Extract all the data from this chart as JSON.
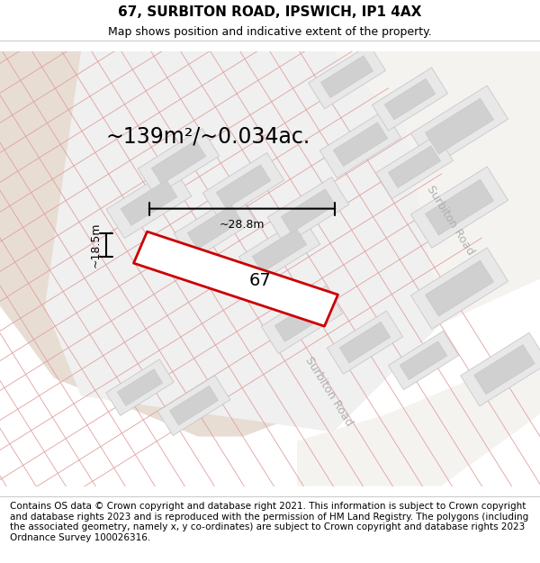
{
  "title_line1": "67, SURBITON ROAD, IPSWICH, IP1 4AX",
  "title_line2": "Map shows position and indicative extent of the property.",
  "footer_text": "Contains OS data © Crown copyright and database right 2021. This information is subject to Crown copyright and database rights 2023 and is reproduced with the permission of HM Land Registry. The polygons (including the associated geometry, namely x, y co-ordinates) are subject to Crown copyright and database rights 2023 Ordnance Survey 100026316.",
  "area_text": "~139m²/~0.034ac.",
  "width_label": "~28.8m",
  "height_label": "~18.5m",
  "number_label": "67",
  "map_bg": "#f7f5f2",
  "beige_color": "#e8ddd3",
  "building_fill": "#e8e8e8",
  "building_edge_outer": "#d0d0d0",
  "building_edge_inner": "#d0d0d0",
  "inner_fill": "#d8d8d8",
  "road_fill": "#f5f3f0",
  "plot_fill": "#ffffff",
  "plot_edge": "#cc0000",
  "road_line_color": "#e0a0a0",
  "road_label_color": "#b0b0b0",
  "title_fontsize": 11,
  "subtitle_fontsize": 9,
  "footer_fontsize": 7.5,
  "area_fontsize": 17,
  "dim_fontsize": 9,
  "number_fontsize": 14
}
